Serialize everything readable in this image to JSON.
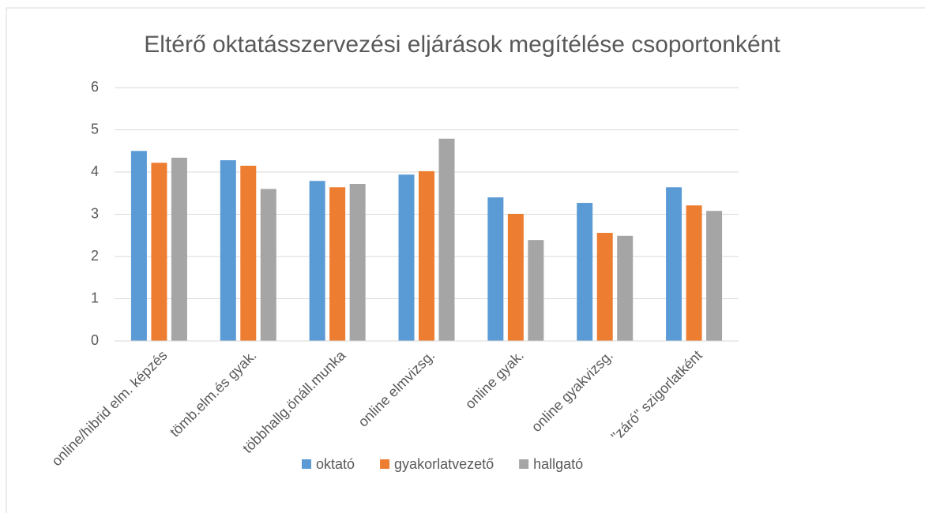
{
  "chart_data": {
    "type": "bar",
    "title": "Eltérő oktatásszervezési eljárások megítélése csoportonként",
    "categories": [
      "online/hibrid elm. képzés",
      "tömb.elm.és gyak.",
      "többhallg.önáll.munka",
      "online elmvizsg.",
      "online gyak.",
      "online gyakvizsg.",
      "\"záró\" szigorlatként"
    ],
    "series": [
      {
        "name": "oktató",
        "color": "#5b9bd5",
        "values": [
          4.5,
          4.28,
          3.79,
          3.94,
          3.4,
          3.27,
          3.64
        ]
      },
      {
        "name": "gyakorlatvezető",
        "color": "#ed7d31",
        "values": [
          4.22,
          4.15,
          3.64,
          4.02,
          3.01,
          2.56,
          3.21
        ]
      },
      {
        "name": "hallgató",
        "color": "#a5a5a5",
        "values": [
          4.34,
          3.6,
          3.72,
          4.79,
          2.39,
          2.49,
          3.08
        ]
      }
    ],
    "ylim": [
      0,
      6
    ],
    "yticks": [
      0,
      1,
      2,
      3,
      4,
      5,
      6
    ],
    "grid": true,
    "legend": "bottom"
  }
}
